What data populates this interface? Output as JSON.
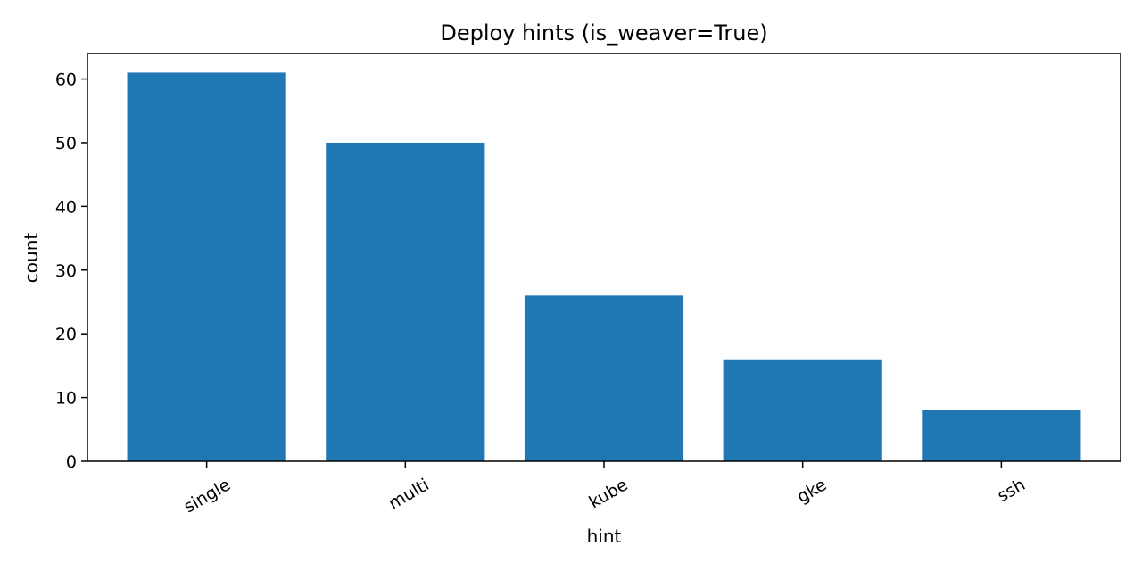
{
  "chart_data": {
    "type": "bar",
    "title": "Deploy hints (is_weaver=True)",
    "xlabel": "hint",
    "ylabel": "count",
    "categories": [
      "single",
      "multi",
      "kube",
      "gke",
      "ssh"
    ],
    "values": [
      61,
      50,
      26,
      16,
      8
    ],
    "ylim": [
      0,
      64
    ],
    "yticks": [
      0,
      10,
      20,
      30,
      40,
      50,
      60
    ],
    "bar_color": "#1f77b4",
    "grid": false,
    "legend": "none"
  }
}
